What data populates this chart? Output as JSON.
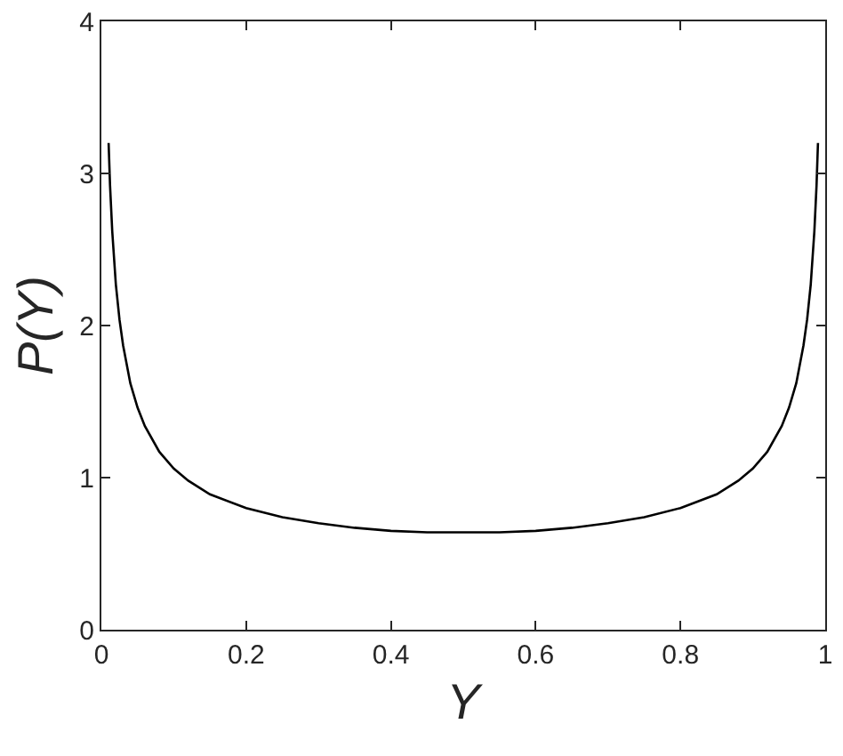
{
  "chart_data": {
    "type": "line",
    "xlabel": "Y",
    "ylabel": "P(Y)",
    "x": [
      0.01,
      0.012,
      0.015,
      0.02,
      0.025,
      0.03,
      0.04,
      0.05,
      0.06,
      0.08,
      0.1,
      0.12,
      0.15,
      0.2,
      0.25,
      0.3,
      0.35,
      0.4,
      0.45,
      0.5,
      0.55,
      0.6,
      0.65,
      0.7,
      0.75,
      0.8,
      0.85,
      0.88,
      0.9,
      0.92,
      0.94,
      0.95,
      0.96,
      0.97,
      0.975,
      0.98,
      0.985,
      0.988,
      0.99
    ],
    "series": [
      {
        "color": "#000000",
        "values": [
          3.2,
          2.92,
          2.62,
          2.27,
          2.04,
          1.87,
          1.62,
          1.46,
          1.34,
          1.17,
          1.06,
          0.98,
          0.89,
          0.8,
          0.74,
          0.7,
          0.67,
          0.65,
          0.64,
          0.64,
          0.64,
          0.65,
          0.67,
          0.7,
          0.74,
          0.8,
          0.89,
          0.98,
          1.06,
          1.17,
          1.34,
          1.46,
          1.62,
          1.87,
          2.04,
          2.27,
          2.62,
          2.92,
          3.2
        ]
      }
    ],
    "xlim": [
      0,
      1
    ],
    "xticks": [
      0,
      0.2,
      0.4,
      0.6,
      0.8,
      1
    ],
    "ylim": [
      0,
      4
    ],
    "yticks": [
      0,
      1,
      2,
      3,
      4
    ],
    "marker": "none",
    "line_style": "solid"
  }
}
